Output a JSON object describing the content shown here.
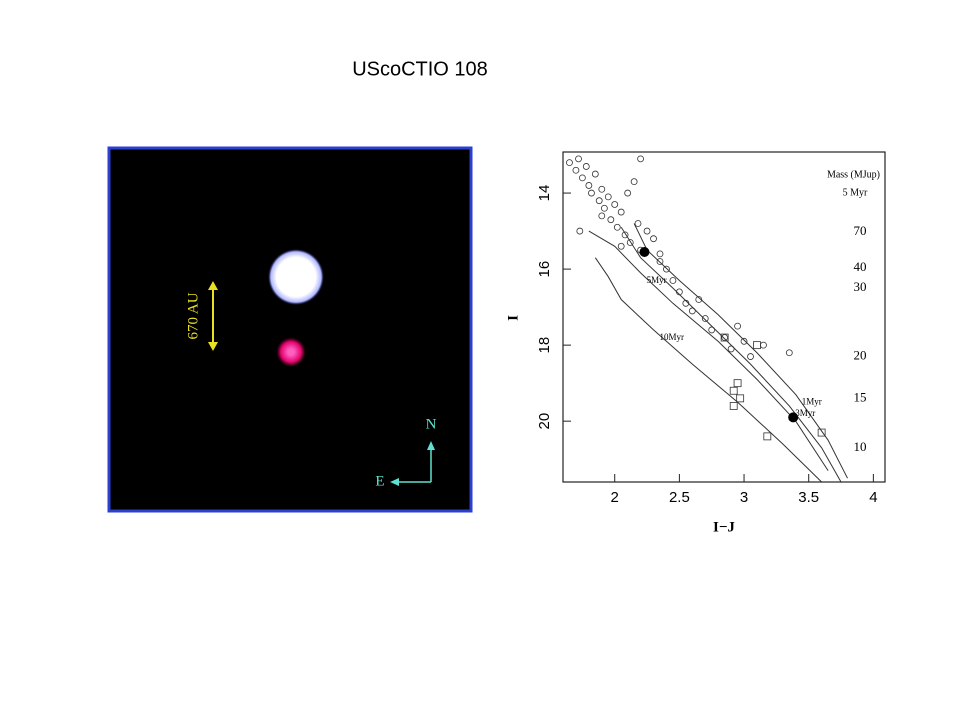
{
  "title": "UScoCTIO 108",
  "image": {
    "scale_label": "670 AU",
    "north": "N",
    "east": "E"
  },
  "chart_data": {
    "type": "scatter",
    "x_label": "I−J",
    "y_label": "I",
    "xlim": [
      1.6,
      4.09
    ],
    "ylim": [
      12.92,
      21.6
    ],
    "y_inverted": true,
    "xticks": [
      2,
      2.5,
      3,
      3.5,
      4
    ],
    "yticks": [
      14,
      16,
      18,
      20
    ],
    "series": [
      {
        "name": "1Myr",
        "marker": "line",
        "color": "#333333",
        "x": [
          2.15,
          2.25,
          2.5,
          2.8,
          3.1,
          3.4,
          3.65,
          3.8
        ],
        "y": [
          14.8,
          15.5,
          16.3,
          17.2,
          18.2,
          19.3,
          20.5,
          21.5
        ]
      },
      {
        "name": "3Myr",
        "marker": "line",
        "color": "#333333",
        "x": [
          2.05,
          2.2,
          2.45,
          2.75,
          3.05,
          3.35,
          3.6,
          3.75
        ],
        "y": [
          14.9,
          15.7,
          16.5,
          17.5,
          18.5,
          19.6,
          20.7,
          21.6
        ]
      },
      {
        "name": "5Myr",
        "marker": "line",
        "color": "#333333",
        "x": [
          1.8,
          2.0,
          2.2,
          2.45,
          2.8,
          3.1,
          3.4,
          3.65
        ],
        "y": [
          15.0,
          15.4,
          16.1,
          16.9,
          17.9,
          18.9,
          20.0,
          21.3
        ]
      },
      {
        "name": "10Myr",
        "marker": "line",
        "color": "#333333",
        "x": [
          1.85,
          1.95,
          2.05,
          2.3,
          2.6,
          2.95,
          3.3,
          3.6
        ],
        "y": [
          15.7,
          16.2,
          16.8,
          17.6,
          18.5,
          19.5,
          20.6,
          21.6
        ]
      },
      {
        "marker": "circle",
        "color": "#333333",
        "x": [
          1.65,
          1.7,
          1.72,
          1.75,
          1.78,
          1.8,
          1.82,
          1.85,
          1.88,
          1.9,
          1.92,
          1.95,
          1.97,
          2.0,
          2.02,
          2.05,
          2.08,
          2.1,
          2.12,
          2.15,
          2.18,
          2.2,
          2.25,
          2.3,
          2.35,
          2.4,
          2.45,
          2.5,
          2.55,
          2.6,
          2.7,
          2.75,
          2.85,
          2.9,
          2.95,
          3.0,
          3.05,
          3.15,
          3.35,
          2.2,
          1.73,
          1.9,
          2.05,
          2.35,
          2.65
        ],
        "y": [
          13.2,
          13.4,
          13.1,
          13.6,
          13.3,
          13.8,
          14.0,
          13.5,
          14.2,
          13.9,
          14.4,
          14.1,
          14.7,
          14.3,
          14.9,
          14.5,
          15.1,
          14.0,
          15.3,
          13.7,
          14.8,
          15.5,
          15.0,
          15.2,
          15.8,
          16.0,
          16.3,
          16.6,
          16.9,
          17.1,
          17.3,
          17.6,
          17.8,
          18.1,
          17.5,
          17.9,
          18.3,
          18.0,
          18.2,
          13.1,
          15.0,
          14.6,
          15.4,
          15.6,
          16.8
        ]
      },
      {
        "marker": "square",
        "color": "#333333",
        "x": [
          2.85,
          2.92,
          2.95,
          2.97,
          2.92,
          3.18,
          3.1,
          3.6
        ],
        "y": [
          17.8,
          19.2,
          19.0,
          19.4,
          19.6,
          20.4,
          18.0,
          20.3
        ]
      },
      {
        "marker": "filled",
        "color": "#000000",
        "x": [
          2.23,
          3.38
        ],
        "y": [
          15.55,
          19.9
        ]
      }
    ],
    "mass_scale": {
      "title": "Mass (MJup)",
      "age": "5 Myr",
      "ticks": [
        {
          "I": 15.03,
          "mass": 70
        },
        {
          "I": 15.97,
          "mass": 40
        },
        {
          "I": 16.5,
          "mass": 30
        },
        {
          "I": 18.3,
          "mass": 20
        },
        {
          "I": 19.4,
          "mass": 15
        },
        {
          "I": 20.7,
          "mass": 10
        }
      ]
    }
  }
}
